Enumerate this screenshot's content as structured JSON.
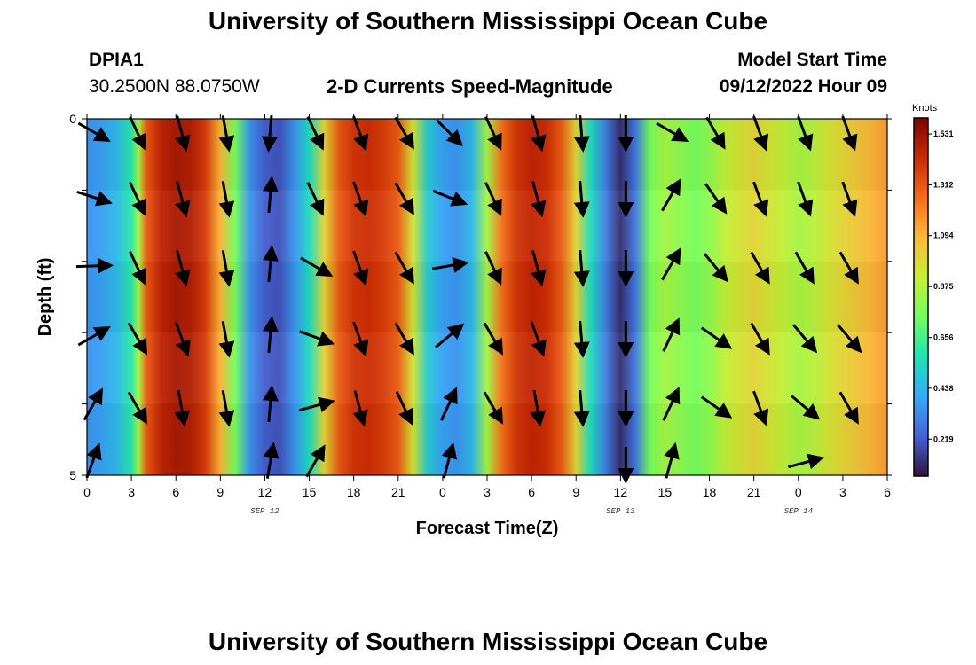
{
  "page": {
    "title_top": "University of Southern Mississippi Ocean Cube",
    "title_bottom": "University of Southern Mississippi Ocean Cube",
    "station_id": "DPIA1",
    "coordinates": "30.2500N  88.0750W",
    "chart_title": "2-D Currents Speed-Magnitude",
    "model_start_label": "Model Start Time",
    "model_start_value": "09/12/2022 Hour 09"
  },
  "chart_data": {
    "type": "heatmap",
    "title": "2-D Currents Speed-Magnitude",
    "xlabel": "Forecast Time(Z)",
    "ylabel": "Depth (ft)",
    "x_ticks": [
      "0",
      "3",
      "6",
      "9",
      "12",
      "15",
      "18",
      "21",
      "0",
      "3",
      "6",
      "9",
      "12",
      "15",
      "18",
      "21",
      "0",
      "3",
      "6"
    ],
    "x_hours": [
      0,
      3,
      6,
      9,
      12,
      15,
      18,
      21,
      24,
      27,
      30,
      33,
      36,
      39,
      42,
      45,
      48,
      51,
      54
    ],
    "x_range": [
      0,
      54
    ],
    "date_labels": [
      {
        "text": "SEP 12",
        "hour": 12
      },
      {
        "text": "SEP 13",
        "hour": 36
      },
      {
        "text": "SEP 14",
        "hour": 48
      }
    ],
    "y_ticks": [
      "0",
      "5"
    ],
    "y_range": [
      0,
      5
    ],
    "depth_layers": 5,
    "colorbar": {
      "label": "Knots",
      "ticks": [
        "1.531",
        "1.312",
        "1.094",
        "0.875",
        "0.656",
        "0.438",
        "0.219"
      ],
      "tick_values": [
        1.531,
        1.312,
        1.094,
        0.875,
        0.656,
        0.438,
        0.219
      ],
      "range": [
        0.06,
        1.6
      ],
      "colormap": [
        "#30123b",
        "#4662d7",
        "#36aaf9",
        "#1ae4b6",
        "#72fe5e",
        "#c8ef34",
        "#faba39",
        "#f66b19",
        "#ca2a04",
        "#7a0403"
      ]
    },
    "speed_hour_knots": [
      {
        "h": 0,
        "v": 0.35
      },
      {
        "h": 1,
        "v": 0.38
      },
      {
        "h": 2,
        "v": 0.45
      },
      {
        "h": 3,
        "v": 0.6
      },
      {
        "h": 3.5,
        "v": 0.85
      },
      {
        "h": 4,
        "v": 1.3
      },
      {
        "h": 5,
        "v": 1.45
      },
      {
        "h": 6,
        "v": 1.5
      },
      {
        "h": 7,
        "v": 1.48
      },
      {
        "h": 8,
        "v": 1.38
      },
      {
        "h": 9,
        "v": 1.1
      },
      {
        "h": 10,
        "v": 0.75
      },
      {
        "h": 11,
        "v": 0.35
      },
      {
        "h": 12,
        "v": 0.22
      },
      {
        "h": 13,
        "v": 0.2
      },
      {
        "h": 14,
        "v": 0.35
      },
      {
        "h": 15,
        "v": 0.55
      },
      {
        "h": 16,
        "v": 1.0
      },
      {
        "h": 17,
        "v": 1.3
      },
      {
        "h": 18,
        "v": 1.4
      },
      {
        "h": 19,
        "v": 1.42
      },
      {
        "h": 20,
        "v": 1.38
      },
      {
        "h": 21,
        "v": 1.3
      },
      {
        "h": 22,
        "v": 0.95
      },
      {
        "h": 23,
        "v": 0.5
      },
      {
        "h": 24,
        "v": 0.38
      },
      {
        "h": 25,
        "v": 0.35
      },
      {
        "h": 26,
        "v": 0.45
      },
      {
        "h": 27,
        "v": 0.85
      },
      {
        "h": 28,
        "v": 1.25
      },
      {
        "h": 29,
        "v": 1.4
      },
      {
        "h": 30,
        "v": 1.45
      },
      {
        "h": 31,
        "v": 1.42
      },
      {
        "h": 32,
        "v": 1.3
      },
      {
        "h": 33,
        "v": 1.0
      },
      {
        "h": 34,
        "v": 0.55
      },
      {
        "h": 35,
        "v": 0.3
      },
      {
        "h": 36,
        "v": 0.12
      },
      {
        "h": 37,
        "v": 0.28
      },
      {
        "h": 38,
        "v": 0.75
      },
      {
        "h": 39,
        "v": 0.85
      },
      {
        "h": 40,
        "v": 0.8
      },
      {
        "h": 41,
        "v": 0.75
      },
      {
        "h": 42,
        "v": 0.8
      },
      {
        "h": 43,
        "v": 0.9
      },
      {
        "h": 44,
        "v": 0.95
      },
      {
        "h": 45,
        "v": 1.0
      },
      {
        "h": 46,
        "v": 0.95
      },
      {
        "h": 47,
        "v": 0.9
      },
      {
        "h": 48,
        "v": 0.85
      },
      {
        "h": 49,
        "v": 0.88
      },
      {
        "h": 50,
        "v": 0.95
      },
      {
        "h": 51,
        "v": 1.0
      },
      {
        "h": 52,
        "v": 1.05
      },
      {
        "h": 53,
        "v": 1.1
      },
      {
        "h": 54,
        "v": 1.15
      }
    ],
    "arrows_deg_from_north": {
      "hours": [
        0,
        3,
        6,
        9,
        12,
        15,
        18,
        21,
        24,
        27,
        30,
        33,
        36,
        39,
        42,
        45,
        48,
        51
      ],
      "layers": [
        [
          120,
          155,
          165,
          170,
          185,
          155,
          160,
          150,
          135,
          155,
          165,
          175,
          180,
          120,
          150,
          160,
          160,
          160
        ],
        [
          108,
          155,
          165,
          170,
          5,
          155,
          160,
          150,
          112,
          155,
          165,
          175,
          180,
          30,
          145,
          160,
          160,
          160
        ],
        [
          88,
          155,
          165,
          170,
          5,
          120,
          160,
          150,
          80,
          155,
          165,
          175,
          180,
          30,
          140,
          150,
          150,
          150
        ],
        [
          60,
          150,
          160,
          170,
          5,
          110,
          160,
          150,
          50,
          150,
          160,
          175,
          180,
          25,
          125,
          150,
          140,
          140
        ],
        [
          30,
          150,
          170,
          170,
          5,
          75,
          165,
          155,
          25,
          150,
          170,
          175,
          180,
          25,
          125,
          160,
          130,
          150
        ],
        [
          20,
          null,
          null,
          null,
          10,
          30,
          null,
          null,
          15,
          null,
          null,
          null,
          180,
          15,
          null,
          null,
          75,
          null
        ]
      ]
    }
  }
}
